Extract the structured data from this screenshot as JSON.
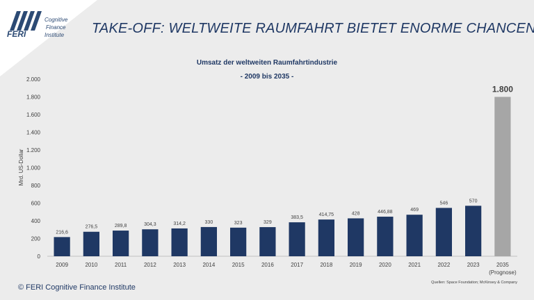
{
  "logo": {
    "brand": "FERI",
    "line1": "Cognitive",
    "line2": "Finance",
    "line3": "Institute"
  },
  "page_title": "TAKE-OFF: WELTWEITE RAUMFAHRT BIETET ENORME CHANCEN",
  "footer": {
    "copyright": "© FERI Cognitive Finance Institute",
    "sources": "Quellen: Space Foundation; McKinsey & Company"
  },
  "colors": {
    "bar": "#1f3864",
    "forecast_bar": "#a6a6a6",
    "title": "#1f3864"
  },
  "chart_data": {
    "type": "bar",
    "title": "Umsatz der weltweiten Raumfahrtindustrie",
    "subtitle": "- 2009 bis 2035 -",
    "ylabel": "Mrd. US-Dollar",
    "xlabel": "",
    "ylim": [
      0,
      2000
    ],
    "yticks": [
      0,
      200,
      400,
      600,
      800,
      1000,
      1200,
      1400,
      1600,
      1800,
      2000
    ],
    "ytick_labels": [
      "0",
      "200",
      "400",
      "600",
      "800",
      "1.000",
      "1.200",
      "1.400",
      "1.600",
      "1.800",
      "2.000"
    ],
    "grid": false,
    "categories": [
      "2009",
      "2010",
      "2011",
      "2012",
      "2013",
      "2014",
      "2015",
      "2016",
      "2017",
      "2018",
      "2019",
      "2020",
      "2021",
      "2022",
      "2023",
      "2035"
    ],
    "category_notes": [
      "",
      "",
      "",
      "",
      "",
      "",
      "",
      "",
      "",
      "",
      "",
      "",
      "",
      "",
      "",
      "(Prognose)"
    ],
    "values": [
      216.6,
      276.5,
      289.8,
      304.3,
      314.2,
      330,
      323,
      329,
      383.5,
      414.75,
      428,
      446.88,
      469,
      546,
      570,
      1800
    ],
    "value_labels": [
      "216,6",
      "276,5",
      "289,8",
      "304,3",
      "314,2",
      "330",
      "323",
      "329",
      "383,5",
      "414,75",
      "428",
      "446,88",
      "469",
      "546",
      "570",
      "1.800"
    ],
    "forecast": [
      false,
      false,
      false,
      false,
      false,
      false,
      false,
      false,
      false,
      false,
      false,
      false,
      false,
      false,
      false,
      true
    ]
  }
}
